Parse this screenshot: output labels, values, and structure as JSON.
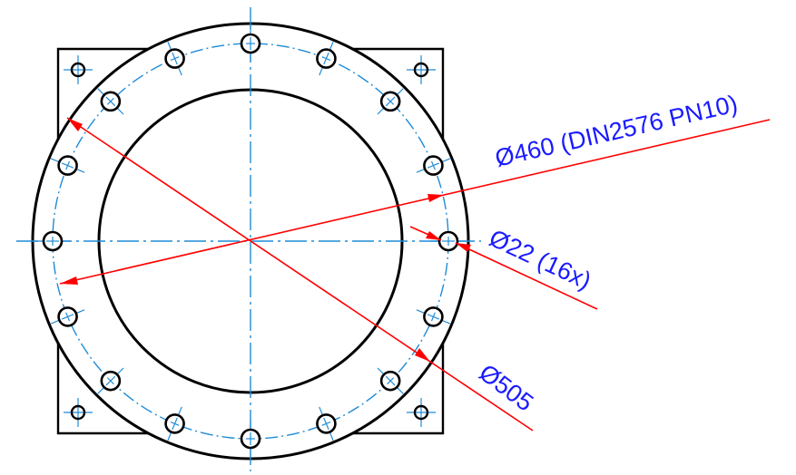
{
  "drawing": {
    "colors": {
      "outline": "#000000",
      "centerline": "#1f8bd6",
      "dimension_line": "#ff0000",
      "dimension_text": "#1a1aff",
      "background": "#ffffff"
    },
    "bolt_hole_count": 16,
    "corner_hole_count": 4,
    "dimensions": {
      "flange_pcd": "Ø460 (DIN2576 PN10)",
      "bolt_hole": "Ø22 (16x)",
      "outer_diameter": "Ø505"
    }
  }
}
